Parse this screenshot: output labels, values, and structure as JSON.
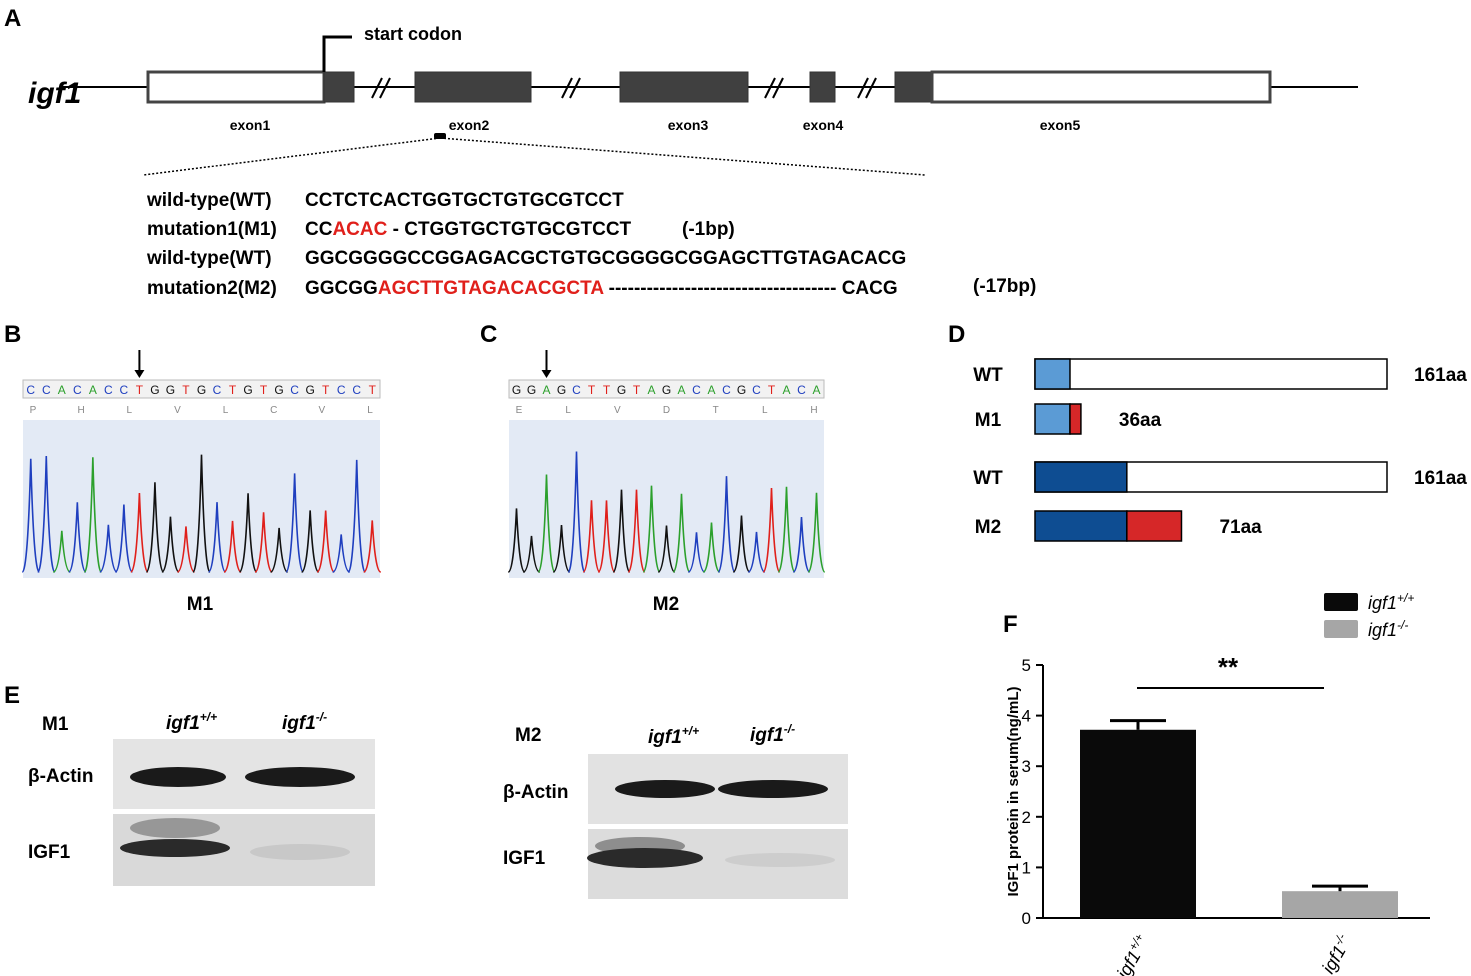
{
  "panels": {
    "A": "A",
    "B": "B",
    "C": "C",
    "D": "D",
    "E": "E",
    "F": "F"
  },
  "gene": {
    "name": "igf1",
    "start_label": "start codon",
    "exons": [
      "exon1",
      "exon2",
      "exon3",
      "exon4",
      "exon5"
    ]
  },
  "sequences": [
    {
      "label": "wild-type(WT)",
      "prefix": "CCTCTCACTGGTGCTGTGCGTCCT",
      "red": "",
      "gap": "",
      "suffix": "",
      "note": ""
    },
    {
      "label": "mutation1(M1)",
      "prefix": "CC",
      "red": "ACAC",
      "gap": " - ",
      "suffix": "CTGGTGCTGTGCGTCCT",
      "note": "(-1bp)"
    },
    {
      "label": "wild-type(WT)",
      "prefix": "GGCGGGGCCGGAGACGCTGTGCGGGGCGGAGCTTGTAGACACG",
      "red": "",
      "gap": "",
      "suffix": "",
      "note": ""
    },
    {
      "label": "mutation2(M2)",
      "prefix": "GGCGG",
      "red": "AGCTTGTAGACACGCTA",
      "gap": " ------------------------------------ ",
      "suffix": "CACG",
      "note": "(-17bp)"
    }
  ],
  "chromatograms": {
    "B": {
      "bases": [
        "C",
        "C",
        "A",
        "C",
        "A",
        "C",
        "C",
        "T",
        "G",
        "G",
        "T",
        "G",
        "C",
        "T",
        "G",
        "T",
        "G",
        "C",
        "G",
        "T",
        "C",
        "C",
        "T"
      ],
      "aa": [
        "P",
        "H",
        "L",
        "V",
        "L",
        "C",
        "V",
        "L"
      ],
      "pos": [
        "80",
        "70"
      ],
      "caption": "M1"
    },
    "C": {
      "bases": [
        "G",
        "G",
        "A",
        "G",
        "C",
        "T",
        "T",
        "G",
        "T",
        "A",
        "G",
        "A",
        "C",
        "A",
        "C",
        "G",
        "C",
        "T",
        "A",
        "C",
        "A"
      ],
      "aa": [
        "E",
        "L",
        "V",
        "D",
        "T",
        "L",
        "H"
      ],
      "pos": [
        "90",
        "100"
      ],
      "caption": "M2"
    },
    "base_colors": {
      "A": "#2ca02c",
      "C": "#1f3fbf",
      "G": "#111111",
      "T": "#e0201b"
    }
  },
  "proteins": [
    {
      "label": "WT",
      "length": "161aa",
      "total": 161,
      "coding": 16,
      "mutant": 0,
      "color": "#5b9bd5"
    },
    {
      "label": "M1",
      "length": "36aa",
      "total": 36,
      "coding": 16,
      "mutant": 5,
      "color": "#5b9bd5"
    },
    {
      "label": "WT",
      "length": "161aa",
      "total": 161,
      "coding": 42,
      "mutant": 0,
      "color": "#0e4d92"
    },
    {
      "label": "M2",
      "length": "71aa",
      "total": 71,
      "coding": 42,
      "mutant": 25,
      "color": "#0e4d92"
    }
  ],
  "mutant_color": "#d62728",
  "western": [
    {
      "line": "M1",
      "genotypes": [
        "igf1",
        "+/+",
        "igf1",
        "-/-"
      ],
      "bands": [
        "β-Actin",
        "IGF1"
      ]
    },
    {
      "line": "M2",
      "genotypes": [
        "igf1",
        "+/+",
        "igf1",
        "-/-"
      ],
      "bands": [
        "β-Actin",
        "IGF1"
      ]
    }
  ],
  "chart_data": {
    "type": "bar",
    "categories": [
      "igf1+/+",
      "igf1-/-"
    ],
    "category_base": "igf1",
    "category_sup": [
      "+/+",
      "-/-"
    ],
    "values": [
      3.72,
      0.53
    ],
    "errors": [
      0.18,
      0.1
    ],
    "colors": [
      "#0a0a0a",
      "#a6a6a6"
    ],
    "ylabel": "IGF1 protein in serum(ng/mL)",
    "ylim": [
      0,
      5
    ],
    "yticks": [
      "0",
      "1",
      "2",
      "3",
      "4",
      "5"
    ],
    "legend": [
      "igf1+/+",
      "igf1-/-"
    ],
    "legend_position": "top-right",
    "significance": "**"
  }
}
